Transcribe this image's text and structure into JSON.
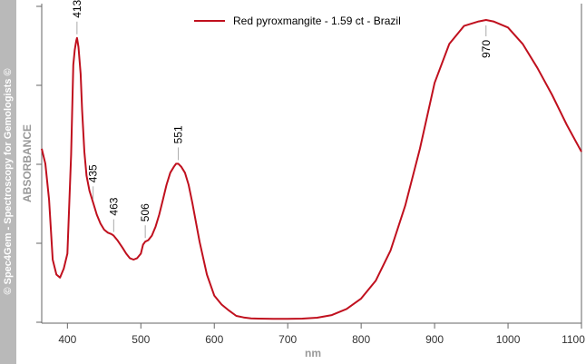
{
  "sidebar": {
    "credit": "© Spec4Gem - Spectroscopy for Gemologists ©"
  },
  "chart_data": {
    "type": "line",
    "title": "",
    "xlabel": "nm",
    "ylabel": "ABSORBANCE",
    "xlim": [
      365,
      1100
    ],
    "xticks": [
      400,
      500,
      600,
      700,
      800,
      900,
      1000,
      1100
    ],
    "xtick_labels": [
      "400",
      "500",
      "600",
      "700",
      "800",
      "900",
      "1000",
      "1100"
    ],
    "ylim": [
      0,
      1
    ],
    "ytick_labels": [],
    "grid": false,
    "legend_position": "top-center",
    "series": [
      {
        "name": "Red pyroxmangite - 1.59 ct - Brazil",
        "color": "#c0101e",
        "x": [
          365,
          370,
          375,
          380,
          385,
          390,
          395,
          400,
          405,
          408,
          410,
          412,
          413,
          415,
          418,
          420,
          423,
          426,
          430,
          435,
          440,
          445,
          450,
          455,
          460,
          463,
          468,
          475,
          480,
          485,
          490,
          495,
          500,
          503,
          506,
          510,
          515,
          520,
          525,
          530,
          535,
          540,
          545,
          548,
          551,
          555,
          560,
          565,
          570,
          580,
          590,
          600,
          610,
          620,
          630,
          640,
          650,
          660,
          680,
          700,
          720,
          740,
          760,
          780,
          800,
          820,
          840,
          860,
          880,
          900,
          920,
          940,
          960,
          970,
          980,
          1000,
          1020,
          1040,
          1060,
          1080,
          1100
        ],
        "values": [
          0.57,
          0.52,
          0.4,
          0.2,
          0.15,
          0.14,
          0.17,
          0.22,
          0.55,
          0.85,
          0.9,
          0.93,
          0.94,
          0.91,
          0.82,
          0.7,
          0.56,
          0.48,
          0.43,
          0.39,
          0.35,
          0.32,
          0.3,
          0.29,
          0.285,
          0.28,
          0.265,
          0.24,
          0.22,
          0.205,
          0.2,
          0.205,
          0.22,
          0.25,
          0.26,
          0.265,
          0.28,
          0.31,
          0.35,
          0.4,
          0.45,
          0.49,
          0.51,
          0.52,
          0.52,
          0.51,
          0.49,
          0.45,
          0.39,
          0.26,
          0.15,
          0.08,
          0.05,
          0.03,
          0.012,
          0.007,
          0.004,
          0.003,
          0.002,
          0.002,
          0.003,
          0.006,
          0.015,
          0.035,
          0.07,
          0.13,
          0.23,
          0.38,
          0.57,
          0.79,
          0.92,
          0.98,
          0.995,
          1.0,
          0.995,
          0.975,
          0.92,
          0.84,
          0.75,
          0.65,
          0.56
        ]
      }
    ],
    "annotations": [
      {
        "label": "413",
        "x": 413,
        "y": 0.94
      },
      {
        "label": "435",
        "x": 435,
        "y": 0.39
      },
      {
        "label": "463",
        "x": 463,
        "y": 0.28
      },
      {
        "label": "506",
        "x": 506,
        "y": 0.26
      },
      {
        "label": "551",
        "x": 551,
        "y": 0.52
      },
      {
        "label": "970",
        "x": 970,
        "y": 1.0
      }
    ]
  }
}
